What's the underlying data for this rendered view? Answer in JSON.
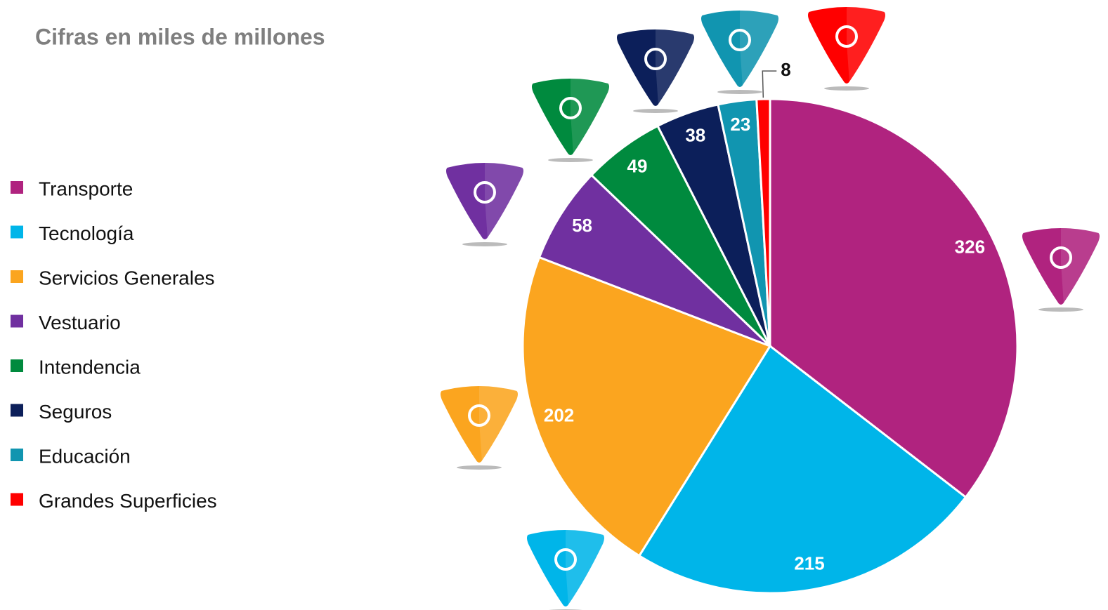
{
  "chart_data": {
    "type": "pie",
    "title": "Cifras en miles de millones",
    "categories": [
      "Transporte",
      "Tecnología",
      "Servicios Generales",
      "Vestuario",
      "Intendencia",
      "Seguros",
      "Educación",
      "Grandes Superficies"
    ],
    "values": [
      326,
      215,
      202,
      58,
      49,
      38,
      23,
      8
    ],
    "colors": [
      "#b0237f",
      "#00b5e9",
      "#fba51f",
      "#7030a0",
      "#008a3e",
      "#0c1f5a",
      "#1195b0",
      "#ff0000"
    ],
    "legend": "left"
  }
}
